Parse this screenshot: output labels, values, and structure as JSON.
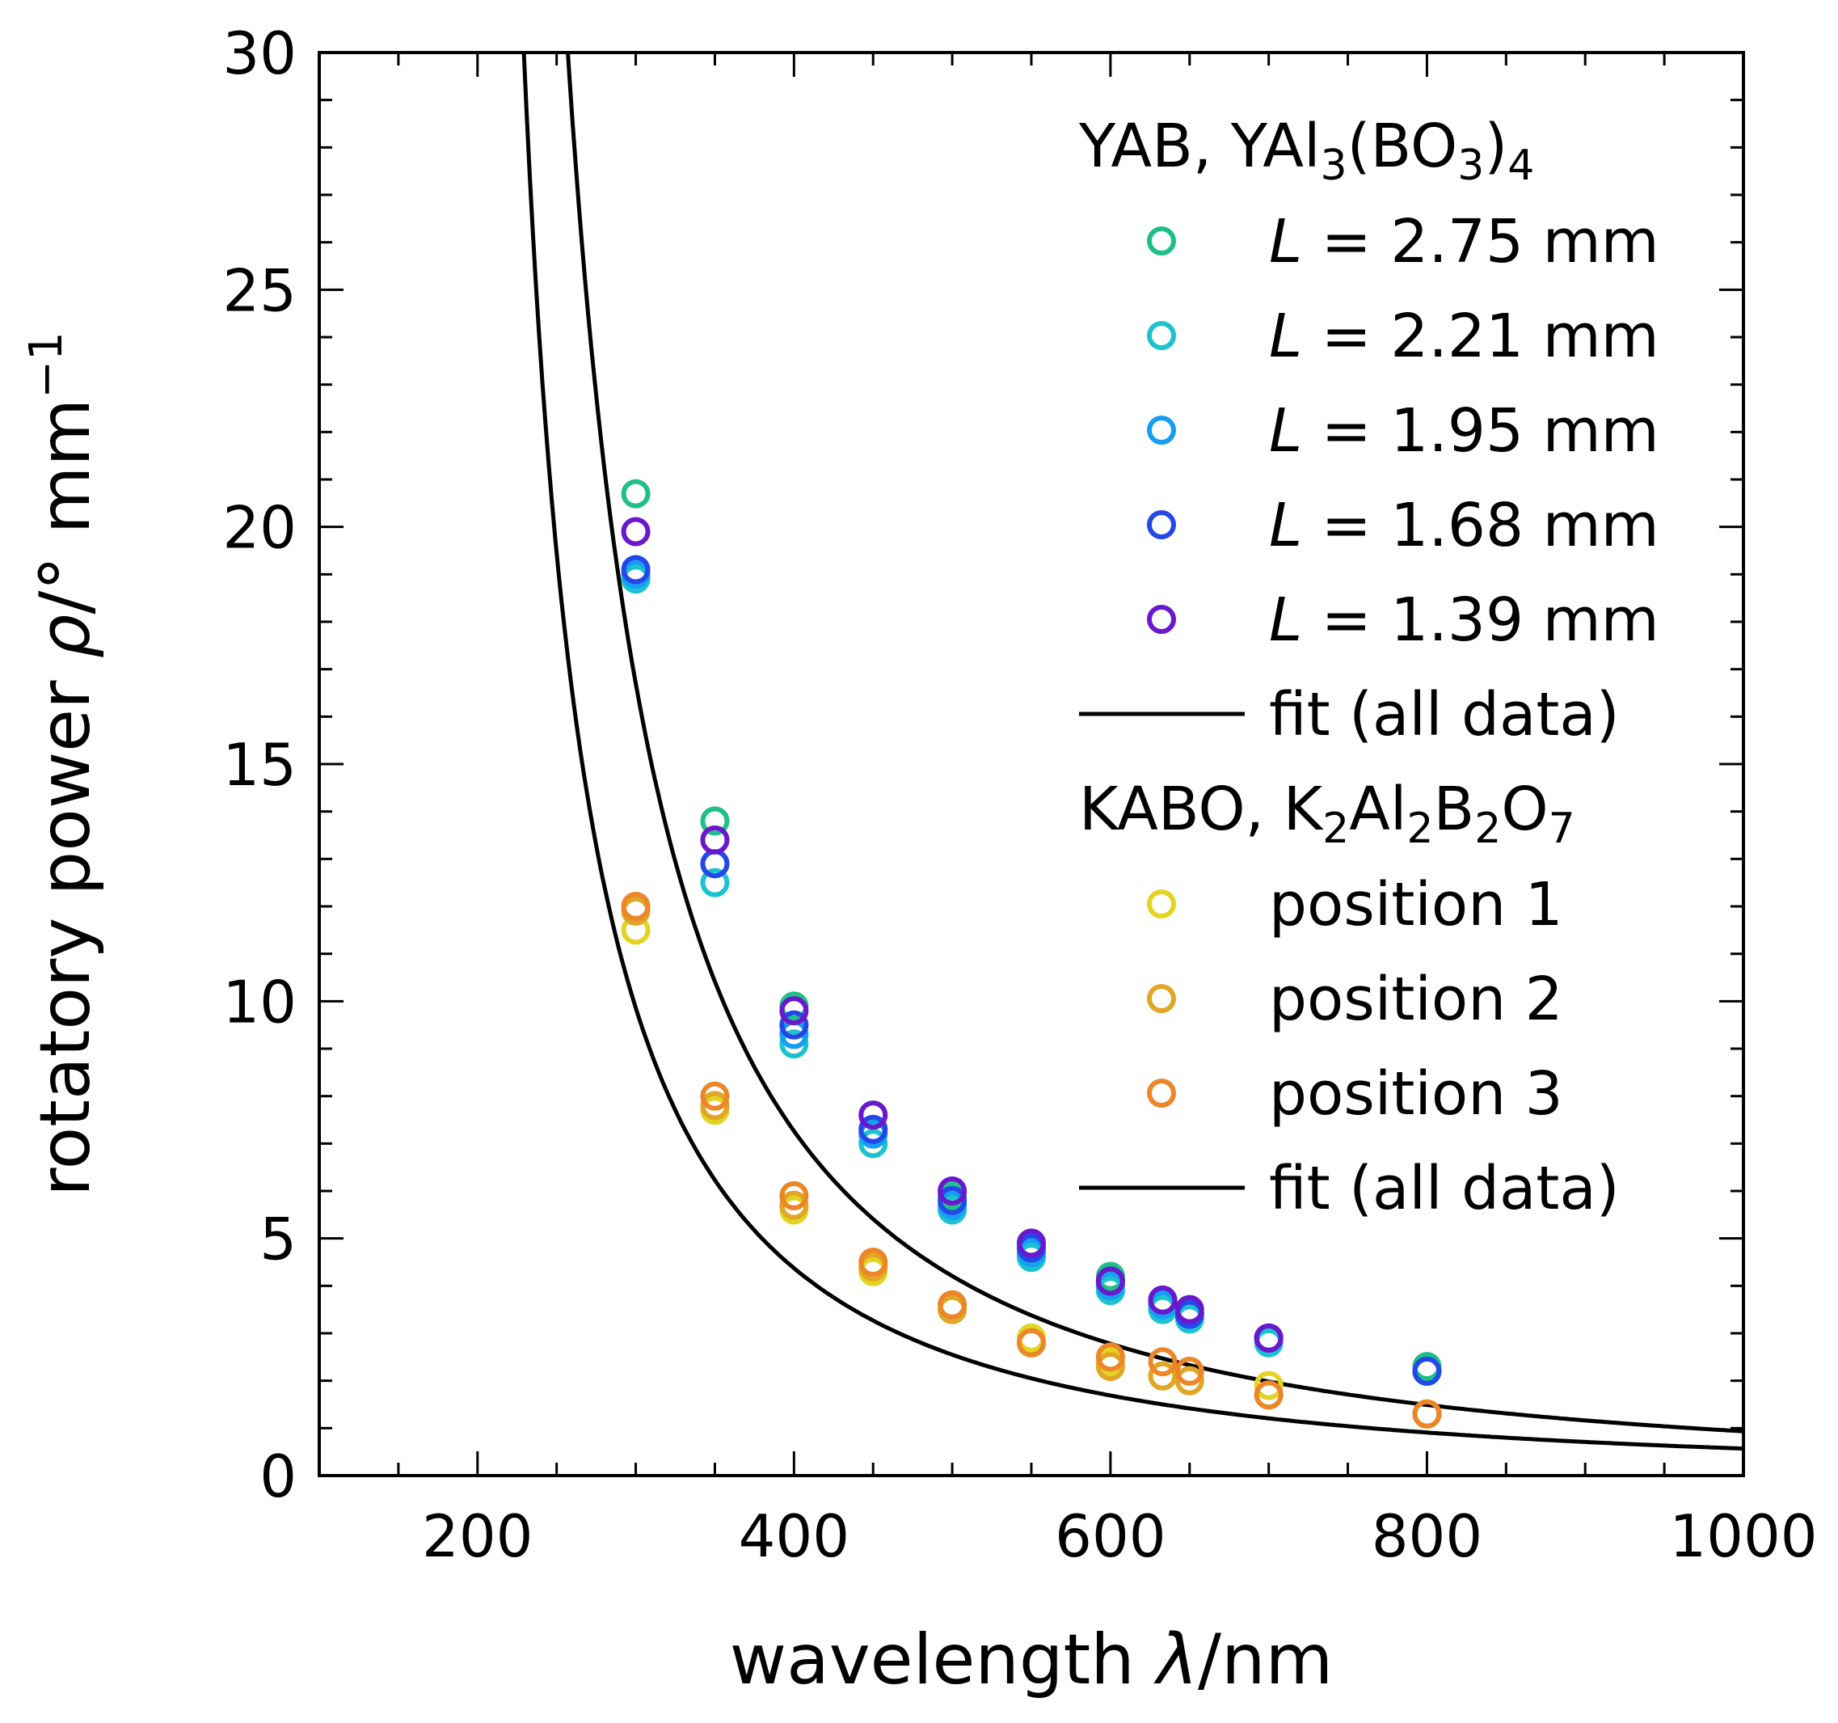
{
  "chart_data": {
    "type": "scatter",
    "title": "",
    "xlabel": {
      "prefix": "wavelength ",
      "symbol": "λ",
      "suffix": "/nm"
    },
    "ylabel": {
      "prefix": "rotatory power ",
      "symbol": "ρ",
      "suffix": "/° mm",
      "sup": "−1"
    },
    "xlim": [
      100,
      1000
    ],
    "ylim": [
      0,
      30
    ],
    "x_ticks": [
      200,
      400,
      600,
      800,
      1000
    ],
    "y_ticks": [
      0,
      5,
      10,
      15,
      20,
      25,
      30
    ],
    "x_minor_step": 50,
    "y_minor_step": 1,
    "legend_position": "top-right",
    "groups": [
      {
        "name": "yab",
        "title": {
          "base": "YAB, YAl",
          "s1": "3",
          "mid": "(BO",
          "s2": "3",
          "close": ")",
          "s3": "4",
          "tail": ""
        },
        "series": [
          {
            "name": "L = 2.75 mm",
            "italic": "L",
            "label": " = 2.75 mm",
            "color": "#1fbf8a",
            "x": [
              300,
              350,
              400,
              450,
              500,
              550,
              600,
              633,
              650,
              700,
              800
            ],
            "y": [
              20.7,
              13.8,
              9.9,
              7.6,
              5.9,
              4.9,
              4.2,
              3.6,
              3.4,
              2.9,
              2.3
            ]
          },
          {
            "name": "L = 2.21 mm",
            "italic": "L",
            "label": " = 2.21 mm",
            "color": "#1cc3cf",
            "x": [
              300,
              350,
              400,
              450,
              500,
              550,
              600,
              633,
              650,
              700,
              800
            ],
            "y": [
              18.9,
              12.5,
              9.1,
              7.0,
              5.6,
              4.6,
              3.9,
              3.5,
              3.3,
              2.8,
              2.2
            ]
          },
          {
            "name": "L = 1.95 mm",
            "italic": "L",
            "label": " = 1.95 mm",
            "color": "#169ff0",
            "x": [
              300,
              350,
              400,
              450,
              500,
              550,
              600,
              633,
              650,
              700,
              800
            ],
            "y": [
              19.0,
              12.9,
              9.3,
              7.2,
              5.7,
              4.7,
              4.0,
              3.6,
              3.4,
              2.9,
              2.2
            ]
          },
          {
            "name": "L = 1.68 mm",
            "italic": "L",
            "label": " = 1.68 mm",
            "color": "#2448e8",
            "x": [
              300,
              350,
              400,
              450,
              500,
              550,
              600,
              633,
              650,
              700,
              800
            ],
            "y": [
              19.1,
              12.9,
              9.5,
              7.3,
              5.8,
              4.8,
              4.1,
              3.7,
              3.4,
              2.9,
              2.2
            ]
          },
          {
            "name": "L = 1.39 mm",
            "italic": "L",
            "label": " = 1.39 mm",
            "color": "#6a18cc",
            "x": [
              300,
              350,
              400,
              450,
              500,
              550,
              600,
              633,
              650,
              700
            ],
            "y": [
              19.9,
              13.4,
              9.8,
              7.6,
              6.0,
              4.9,
              4.1,
              3.7,
              3.5,
              2.9
            ]
          }
        ],
        "fit": {
          "label": "fit (all data)",
          "color": "#000000",
          "A": 0.9,
          "lambda0": 190,
          "xmin": 150,
          "xmax": 1000
        }
      },
      {
        "name": "kabo",
        "title": {
          "base": "KABO, K",
          "s1": "2",
          "mid": "Al",
          "s2": "2",
          "close": "B",
          "s3": "2",
          "tail": "O",
          "s4": "7"
        },
        "series": [
          {
            "name": "position 1",
            "italic": "",
            "label": "position 1",
            "color": "#e3d424",
            "x": [
              300,
              350,
              400,
              450,
              500,
              550,
              600,
              633,
              650,
              700,
              800
            ],
            "y": [
              11.5,
              7.7,
              5.6,
              4.3,
              3.5,
              2.9,
              2.4,
              2.1,
              2.0,
              1.9,
              1.3
            ]
          },
          {
            "name": "position 2",
            "italic": "",
            "label": "position 2",
            "color": "#e0a626",
            "x": [
              300,
              350,
              400,
              450,
              500,
              550,
              600,
              633,
              650,
              700,
              800
            ],
            "y": [
              11.9,
              7.8,
              5.7,
              4.4,
              3.5,
              2.8,
              2.3,
              2.1,
              2.0,
              1.7,
              1.3
            ]
          },
          {
            "name": "position 3",
            "italic": "",
            "label": "position 3",
            "color": "#ec8628",
            "x": [
              300,
              350,
              400,
              450,
              500,
              550,
              600,
              633,
              650,
              700,
              800
            ],
            "y": [
              12.0,
              8.0,
              5.9,
              4.5,
              3.6,
              2.8,
              2.5,
              2.4,
              2.2,
              1.7,
              1.3
            ]
          }
        ],
        "fit": {
          "label": "fit (all data)",
          "color": "#000000",
          "A": 0.55,
          "lambda0": 185,
          "xmin": 150,
          "xmax": 1000
        }
      }
    ]
  }
}
